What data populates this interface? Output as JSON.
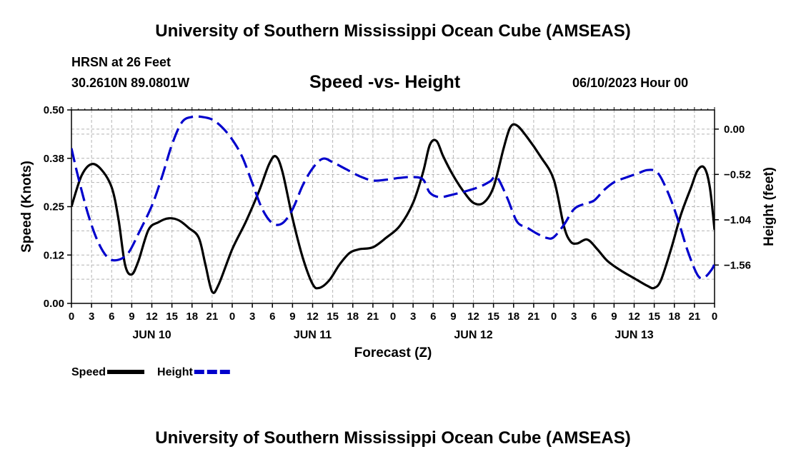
{
  "header": {
    "title": "University of Southern Mississippi Ocean Cube (AMSEAS)",
    "station": "HRSN at 26 Feet",
    "coords": "30.2610N  89.0801W",
    "date": "06/10/2023 Hour 00",
    "footer_title": "University of Southern Mississippi Ocean Cube (AMSEAS)"
  },
  "chart_data": {
    "type": "line",
    "title": "Speed -vs- Height",
    "xlabel": "Forecast (Z)",
    "ylabel_left": "Speed (Knots)",
    "ylabel_right": "Height (feet)",
    "x_unit": "hours since 06/10/2023 00Z",
    "xlim": [
      0,
      96
    ],
    "ylim_left": [
      0.0,
      0.5
    ],
    "ylim_right": [
      -2.0,
      0.22
    ],
    "grid": true,
    "x_ticks": [
      {
        "x": 0,
        "label": "0"
      },
      {
        "x": 3,
        "label": "3"
      },
      {
        "x": 6,
        "label": "6"
      },
      {
        "x": 9,
        "label": "9"
      },
      {
        "x": 12,
        "label": "12"
      },
      {
        "x": 15,
        "label": "15"
      },
      {
        "x": 18,
        "label": "18"
      },
      {
        "x": 21,
        "label": "21"
      },
      {
        "x": 24,
        "label": "0"
      },
      {
        "x": 27,
        "label": "3"
      },
      {
        "x": 30,
        "label": "6"
      },
      {
        "x": 33,
        "label": "9"
      },
      {
        "x": 36,
        "label": "12"
      },
      {
        "x": 39,
        "label": "15"
      },
      {
        "x": 42,
        "label": "18"
      },
      {
        "x": 45,
        "label": "21"
      },
      {
        "x": 48,
        "label": "0"
      },
      {
        "x": 51,
        "label": "3"
      },
      {
        "x": 54,
        "label": "6"
      },
      {
        "x": 57,
        "label": "9"
      },
      {
        "x": 60,
        "label": "12"
      },
      {
        "x": 63,
        "label": "15"
      },
      {
        "x": 66,
        "label": "18"
      },
      {
        "x": 69,
        "label": "21"
      },
      {
        "x": 72,
        "label": "0"
      },
      {
        "x": 75,
        "label": "3"
      },
      {
        "x": 78,
        "label": "6"
      },
      {
        "x": 81,
        "label": "9"
      },
      {
        "x": 84,
        "label": "12"
      },
      {
        "x": 87,
        "label": "15"
      },
      {
        "x": 90,
        "label": "18"
      },
      {
        "x": 93,
        "label": "21"
      },
      {
        "x": 96,
        "label": "0"
      }
    ],
    "day_labels": [
      {
        "x": 12,
        "label": "JUN 10"
      },
      {
        "x": 36,
        "label": "JUN 11"
      },
      {
        "x": 60,
        "label": "JUN 12"
      },
      {
        "x": 84,
        "label": "JUN 13"
      }
    ],
    "y_left_ticks": [
      {
        "v": 0.0,
        "label": "0.00"
      },
      {
        "v": 0.125,
        "label": "0.12"
      },
      {
        "v": 0.25,
        "label": "0.25"
      },
      {
        "v": 0.375,
        "label": "0.38"
      },
      {
        "v": 0.5,
        "label": "0.50"
      }
    ],
    "y_right_ticks": [
      {
        "v": 0.0,
        "label": "0.00"
      },
      {
        "v": -0.52,
        "label": "−0.52"
      },
      {
        "v": -1.04,
        "label": "−1.04"
      },
      {
        "v": -1.56,
        "label": "−1.56"
      }
    ],
    "series": [
      {
        "name": "Speed",
        "axis": "left",
        "color": "#000000",
        "dash": "solid",
        "points": [
          [
            0,
            0.25
          ],
          [
            1.5,
            0.33
          ],
          [
            3,
            0.36
          ],
          [
            4.5,
            0.345
          ],
          [
            6,
            0.3
          ],
          [
            7,
            0.22
          ],
          [
            8,
            0.1
          ],
          [
            9,
            0.075
          ],
          [
            10,
            0.11
          ],
          [
            11.5,
            0.19
          ],
          [
            13,
            0.21
          ],
          [
            14.5,
            0.22
          ],
          [
            16,
            0.215
          ],
          [
            17.5,
            0.195
          ],
          [
            19,
            0.17
          ],
          [
            20,
            0.1
          ],
          [
            21,
            0.03
          ],
          [
            22,
            0.05
          ],
          [
            24,
            0.14
          ],
          [
            26,
            0.21
          ],
          [
            28,
            0.29
          ],
          [
            29.5,
            0.36
          ],
          [
            30.5,
            0.38
          ],
          [
            31.5,
            0.34
          ],
          [
            33,
            0.22
          ],
          [
            34.5,
            0.12
          ],
          [
            36,
            0.05
          ],
          [
            37,
            0.04
          ],
          [
            38.5,
            0.06
          ],
          [
            40,
            0.1
          ],
          [
            41.5,
            0.13
          ],
          [
            43,
            0.14
          ],
          [
            45,
            0.145
          ],
          [
            47,
            0.17
          ],
          [
            49,
            0.2
          ],
          [
            51,
            0.26
          ],
          [
            52.5,
            0.34
          ],
          [
            53.5,
            0.41
          ],
          [
            54.5,
            0.42
          ],
          [
            55.5,
            0.38
          ],
          [
            57,
            0.33
          ],
          [
            58.5,
            0.29
          ],
          [
            60,
            0.26
          ],
          [
            61.5,
            0.26
          ],
          [
            63,
            0.3
          ],
          [
            64.5,
            0.4
          ],
          [
            65.5,
            0.455
          ],
          [
            66.5,
            0.46
          ],
          [
            68,
            0.43
          ],
          [
            70,
            0.38
          ],
          [
            72,
            0.32
          ],
          [
            73.5,
            0.2
          ],
          [
            74.5,
            0.16
          ],
          [
            75.5,
            0.155
          ],
          [
            77,
            0.165
          ],
          [
            78.5,
            0.14
          ],
          [
            80,
            0.11
          ],
          [
            82,
            0.085
          ],
          [
            84,
            0.065
          ],
          [
            86,
            0.045
          ],
          [
            87,
            0.04
          ],
          [
            88,
            0.06
          ],
          [
            89.5,
            0.14
          ],
          [
            91,
            0.23
          ],
          [
            92.5,
            0.3
          ],
          [
            93.5,
            0.345
          ],
          [
            94.5,
            0.35
          ],
          [
            95.3,
            0.3
          ],
          [
            96,
            0.19
          ]
        ]
      },
      {
        "name": "Height",
        "axis": "right",
        "color": "#0000cc",
        "dash": "dashed",
        "points": [
          [
            0,
            -0.22
          ],
          [
            1,
            -0.55
          ],
          [
            2.5,
            -0.98
          ],
          [
            4,
            -1.3
          ],
          [
            5.5,
            -1.48
          ],
          [
            7,
            -1.5
          ],
          [
            8.5,
            -1.42
          ],
          [
            10,
            -1.2
          ],
          [
            12,
            -0.88
          ],
          [
            13.5,
            -0.55
          ],
          [
            15,
            -0.18
          ],
          [
            16.5,
            0.08
          ],
          [
            18,
            0.14
          ],
          [
            19.5,
            0.14
          ],
          [
            21,
            0.11
          ],
          [
            22.5,
            0.02
          ],
          [
            24,
            -0.12
          ],
          [
            25.5,
            -0.32
          ],
          [
            27,
            -0.62
          ],
          [
            28.5,
            -0.92
          ],
          [
            30,
            -1.08
          ],
          [
            31.5,
            -1.08
          ],
          [
            33,
            -0.92
          ],
          [
            34.5,
            -0.65
          ],
          [
            36,
            -0.45
          ],
          [
            37.5,
            -0.34
          ],
          [
            39,
            -0.38
          ],
          [
            41,
            -0.46
          ],
          [
            43,
            -0.54
          ],
          [
            45,
            -0.59
          ],
          [
            47,
            -0.58
          ],
          [
            49,
            -0.56
          ],
          [
            51,
            -0.55
          ],
          [
            52.5,
            -0.58
          ],
          [
            53.5,
            -0.73
          ],
          [
            55,
            -0.78
          ],
          [
            57,
            -0.75
          ],
          [
            59,
            -0.71
          ],
          [
            61,
            -0.66
          ],
          [
            62.5,
            -0.6
          ],
          [
            63.5,
            -0.55
          ],
          [
            65,
            -0.78
          ],
          [
            66.5,
            -1.06
          ],
          [
            68,
            -1.13
          ],
          [
            69.5,
            -1.2
          ],
          [
            71,
            -1.25
          ],
          [
            72,
            -1.24
          ],
          [
            73.5,
            -1.1
          ],
          [
            75,
            -0.92
          ],
          [
            76.5,
            -0.86
          ],
          [
            78,
            -0.82
          ],
          [
            79.5,
            -0.7
          ],
          [
            81,
            -0.61
          ],
          [
            83,
            -0.55
          ],
          [
            84.5,
            -0.51
          ],
          [
            86,
            -0.47
          ],
          [
            87.5,
            -0.5
          ],
          [
            89,
            -0.72
          ],
          [
            90.5,
            -1.03
          ],
          [
            92,
            -1.4
          ],
          [
            93.5,
            -1.68
          ],
          [
            94.5,
            -1.7
          ],
          [
            95.5,
            -1.62
          ],
          [
            96,
            -1.55
          ]
        ]
      }
    ],
    "legend": [
      {
        "name": "Speed",
        "color": "#000000",
        "dash": "solid"
      },
      {
        "name": "Height",
        "color": "#0000cc",
        "dash": "dashed"
      }
    ],
    "legend_position": "bottom-left"
  }
}
